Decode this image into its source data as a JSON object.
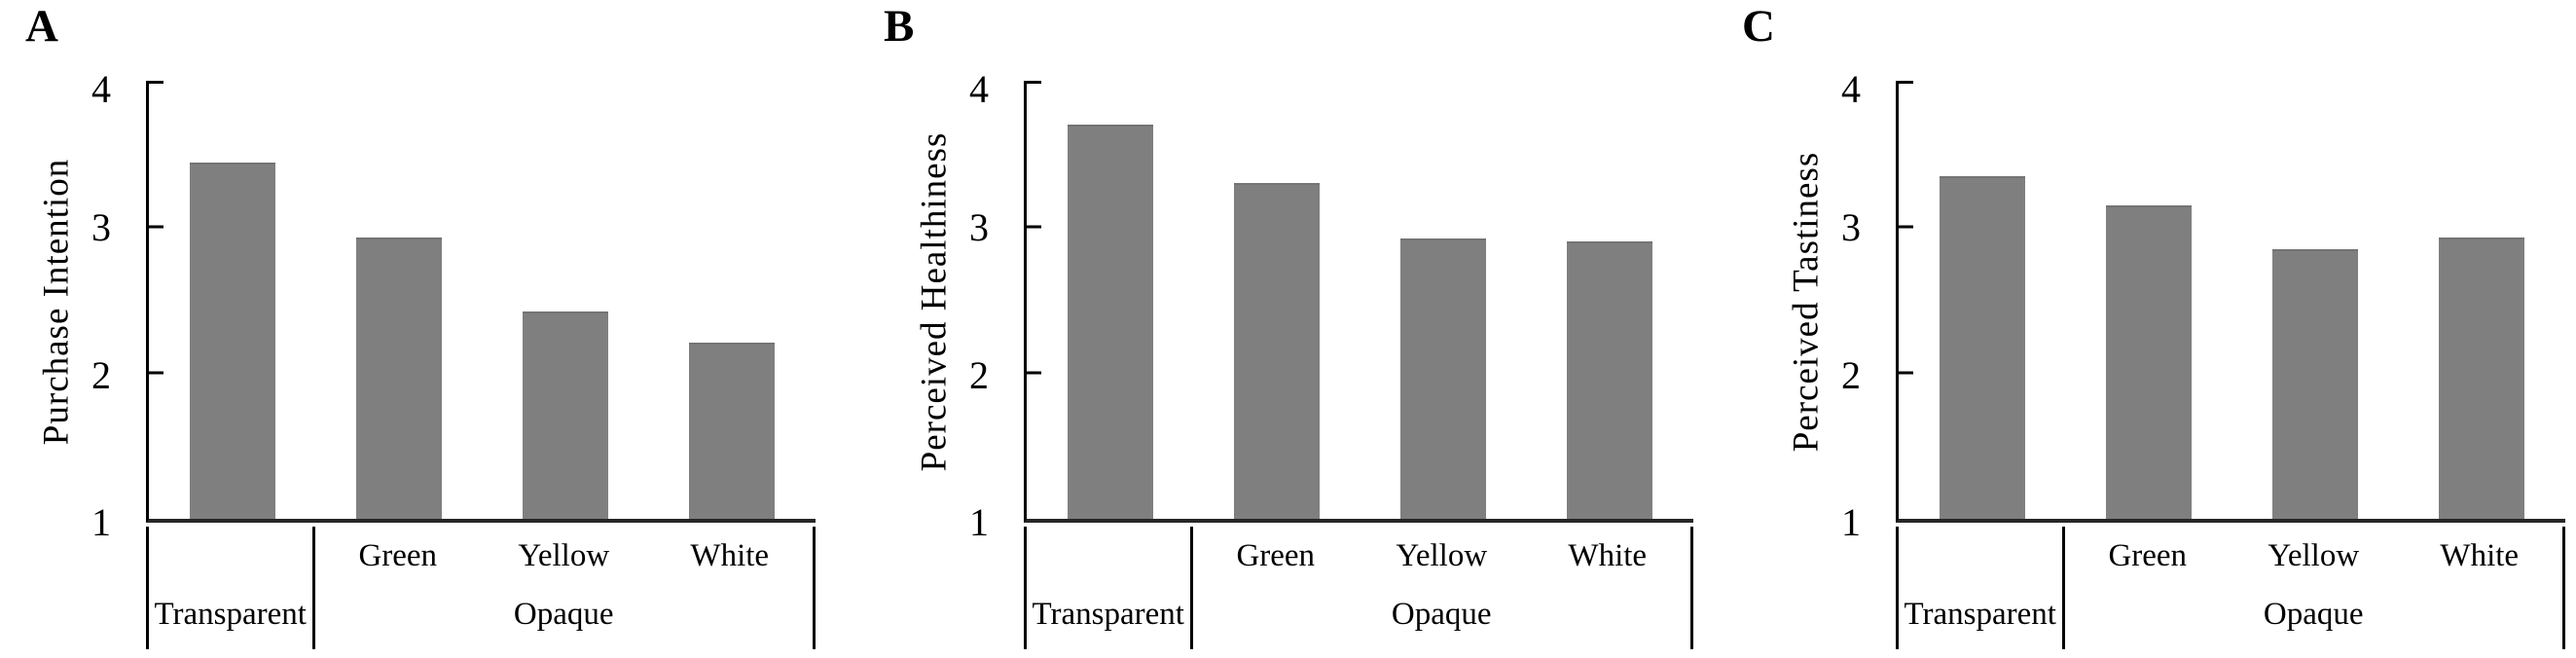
{
  "colors": {
    "bar": "#7f7f7f",
    "bar_top_edge": "#747474",
    "axis": "#000000",
    "background": "#ffffff"
  },
  "chart_data": [
    {
      "type": "bar",
      "panel_label": "A",
      "title": "",
      "xlabel": "",
      "ylabel": "Purchase Intention",
      "categories": [
        "Transparent",
        "Green",
        "Yellow",
        "White"
      ],
      "values": [
        3.44,
        2.93,
        2.42,
        2.21
      ],
      "opaque_group_label": "Opaque",
      "ylim": [
        1,
        4
      ],
      "yticks": [
        "4",
        "3",
        "2",
        "1"
      ],
      "grid": false,
      "legend": "none",
      "x_axis_structure": "two-tier: Transparent cell | Opaque cell containing Green, Yellow, White"
    },
    {
      "type": "bar",
      "panel_label": "B",
      "title": "",
      "xlabel": "",
      "ylabel": "Perceived Healthiness",
      "categories": [
        "Transparent",
        "Green",
        "Yellow",
        "White"
      ],
      "values": [
        3.7,
        3.3,
        2.92,
        2.9
      ],
      "opaque_group_label": "Opaque",
      "ylim": [
        1,
        4
      ],
      "yticks": [
        "4",
        "3",
        "2",
        "1"
      ],
      "grid": false,
      "legend": "none",
      "x_axis_structure": "two-tier: Transparent cell | Opaque cell containing Green, Yellow, White"
    },
    {
      "type": "bar",
      "panel_label": "C",
      "title": "",
      "xlabel": "",
      "ylabel": "Perceived Tastiness",
      "categories": [
        "Transparent",
        "Green",
        "Yellow",
        "White"
      ],
      "values": [
        3.35,
        3.15,
        2.85,
        2.93
      ],
      "opaque_group_label": "Opaque",
      "ylim": [
        1,
        4
      ],
      "yticks": [
        "4",
        "3",
        "2",
        "1"
      ],
      "grid": false,
      "legend": "none",
      "x_axis_structure": "two-tier: Transparent cell | Opaque cell containing Green, Yellow, White"
    }
  ]
}
